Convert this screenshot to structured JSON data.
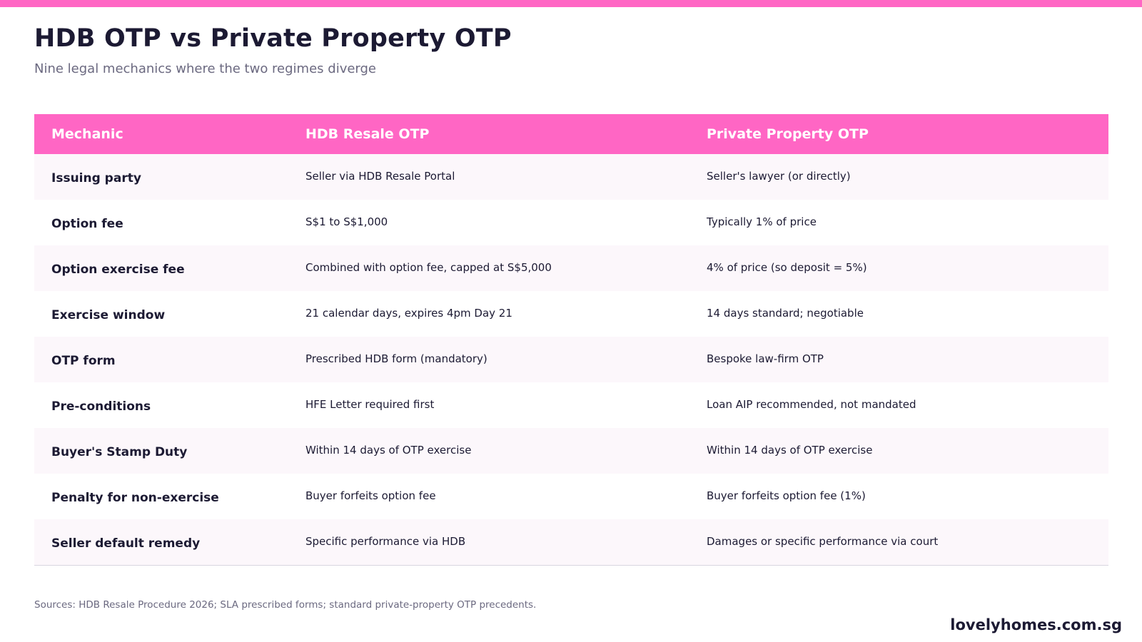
{
  "header": {
    "title": "HDB OTP vs Private Property OTP",
    "subtitle": "Nine legal mechanics where the two regimes diverge",
    "accent_color": "#ff66c4"
  },
  "table": {
    "columns": [
      "Mechanic",
      "HDB Resale OTP",
      "Private Property OTP"
    ],
    "rows": [
      [
        "Issuing party",
        "Seller via HDB Resale Portal",
        "Seller's lawyer (or directly)"
      ],
      [
        "Option fee",
        "S$1 to S$1,000",
        "Typically 1% of price"
      ],
      [
        "Option exercise fee",
        "Combined with option fee, capped at S$5,000",
        "4% of price (so deposit = 5%)"
      ],
      [
        "Exercise window",
        "21 calendar days, expires 4pm Day 21",
        "14 days standard; negotiable"
      ],
      [
        "OTP form",
        "Prescribed HDB form (mandatory)",
        "Bespoke law-firm OTP"
      ],
      [
        "Pre-conditions",
        "HFE Letter required first",
        "Loan AIP recommended, not mandated"
      ],
      [
        "Buyer's Stamp Duty",
        "Within 14 days of OTP exercise",
        "Within 14 days of OTP exercise"
      ],
      [
        "Penalty for non-exercise",
        "Buyer forfeits option fee",
        "Buyer forfeits option fee (1%)"
      ],
      [
        "Seller default remedy",
        "Specific performance via HDB",
        "Damages or specific performance via court"
      ]
    ]
  },
  "footer": {
    "sources": "Sources: HDB Resale Procedure 2026; SLA prescribed forms; standard private-property OTP precedents.",
    "brand": "lovelyhomes.com.sg"
  }
}
